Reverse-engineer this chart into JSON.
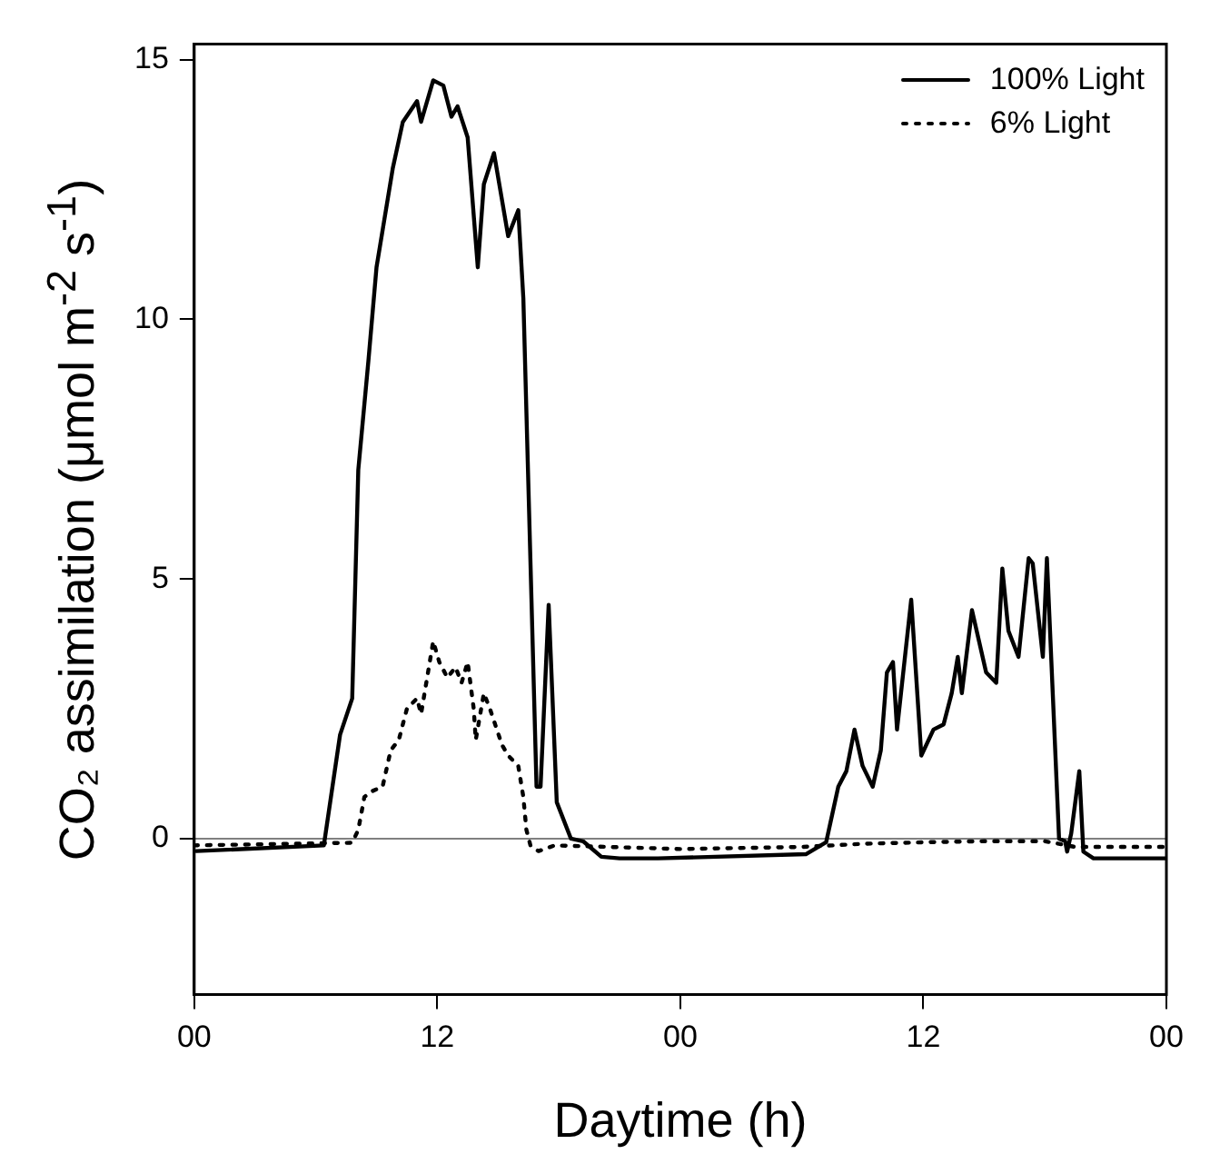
{
  "chart_data": {
    "type": "line",
    "xlabel": "Daytime (h)",
    "ylabel": "CO₂ assimilation (μmol m$^{-2}$ s$^{-1}$)",
    "xlim": [
      0,
      48
    ],
    "ylim": [
      -3,
      15.3
    ],
    "xticks": [
      {
        "value": 0,
        "label": "00"
      },
      {
        "value": 12,
        "label": "12"
      },
      {
        "value": 24,
        "label": "00"
      },
      {
        "value": 36,
        "label": "12"
      },
      {
        "value": 48,
        "label": "00"
      }
    ],
    "yticks": [
      0,
      5,
      10,
      15
    ],
    "grid": false,
    "legend": "top right",
    "marker": "none",
    "ref_lines": [
      {
        "axis": "y",
        "value": 0,
        "color": "#808080",
        "line_style": "solid"
      }
    ],
    "series": [
      {
        "name": "100% Light",
        "color": "#000000",
        "line_style": "solid",
        "x": [
          0.1,
          6.4,
          7.2,
          7.8,
          8.1,
          8.6,
          9.0,
          9.8,
          10.3,
          11.0,
          11.2,
          11.8,
          12.3,
          12.7,
          13.0,
          13.5,
          14.0,
          14.3,
          14.8,
          15.5,
          16.0,
          16.25,
          16.9,
          17.1,
          17.5,
          17.9,
          18.6,
          19.2,
          20.1,
          21.0,
          22.9,
          30.2,
          31.2,
          31.8,
          32.2,
          32.6,
          33.0,
          33.5,
          33.9,
          34.2,
          34.5,
          34.7,
          35.4,
          35.9,
          36.5,
          37.0,
          37.4,
          37.7,
          37.9,
          38.4,
          39.1,
          39.6,
          39.9,
          40.2,
          40.7,
          41.2,
          41.4,
          41.9,
          42.1,
          42.7,
          43.0,
          43.1,
          43.3,
          43.7,
          43.9,
          44.4,
          48
        ],
        "values": [
          -0.24,
          -0.13,
          2.0,
          2.7,
          7.1,
          9.2,
          11.0,
          12.9,
          13.8,
          14.2,
          13.8,
          14.6,
          14.5,
          13.9,
          14.1,
          13.5,
          11.0,
          12.6,
          13.2,
          11.6,
          12.1,
          10.4,
          1.0,
          1.0,
          4.5,
          0.7,
          0.0,
          -0.05,
          -0.35,
          -0.38,
          -0.38,
          -0.3,
          -0.07,
          1.0,
          1.3,
          2.1,
          1.4,
          1.0,
          1.7,
          3.2,
          3.4,
          2.1,
          4.6,
          1.6,
          2.1,
          2.2,
          2.8,
          3.5,
          2.8,
          4.4,
          3.2,
          3.0,
          5.2,
          4.0,
          3.5,
          5.4,
          5.3,
          3.5,
          5.4,
          0.0,
          -0.05,
          -0.25,
          0.1,
          1.3,
          -0.25,
          -0.38,
          -0.38
        ]
      },
      {
        "name": "6% Light",
        "color": "#000000",
        "line_style": "dotted",
        "x": [
          0,
          7.8,
          8.1,
          8.4,
          8.7,
          9.3,
          9.7,
          10.1,
          10.5,
          11.0,
          11.2,
          11.5,
          11.8,
          12.1,
          12.5,
          12.9,
          13.2,
          13.5,
          13.8,
          13.9,
          14.3,
          14.6,
          15.2,
          15.5,
          16.0,
          16.25,
          16.4,
          16.6,
          17.0,
          17.8,
          24,
          30,
          33,
          36,
          39,
          42,
          42.7,
          43.5,
          48
        ],
        "values": [
          -0.13,
          -0.08,
          0.17,
          0.8,
          0.9,
          1.0,
          1.7,
          1.9,
          2.5,
          2.7,
          2.4,
          3.1,
          3.8,
          3.4,
          3.1,
          3.3,
          3.0,
          3.4,
          2.5,
          1.9,
          2.8,
          2.5,
          1.8,
          1.6,
          1.4,
          0.8,
          0.17,
          -0.13,
          -0.24,
          -0.13,
          -0.2,
          -0.16,
          -0.1,
          -0.07,
          -0.05,
          -0.05,
          -0.1,
          -0.16,
          -0.16
        ]
      }
    ]
  }
}
